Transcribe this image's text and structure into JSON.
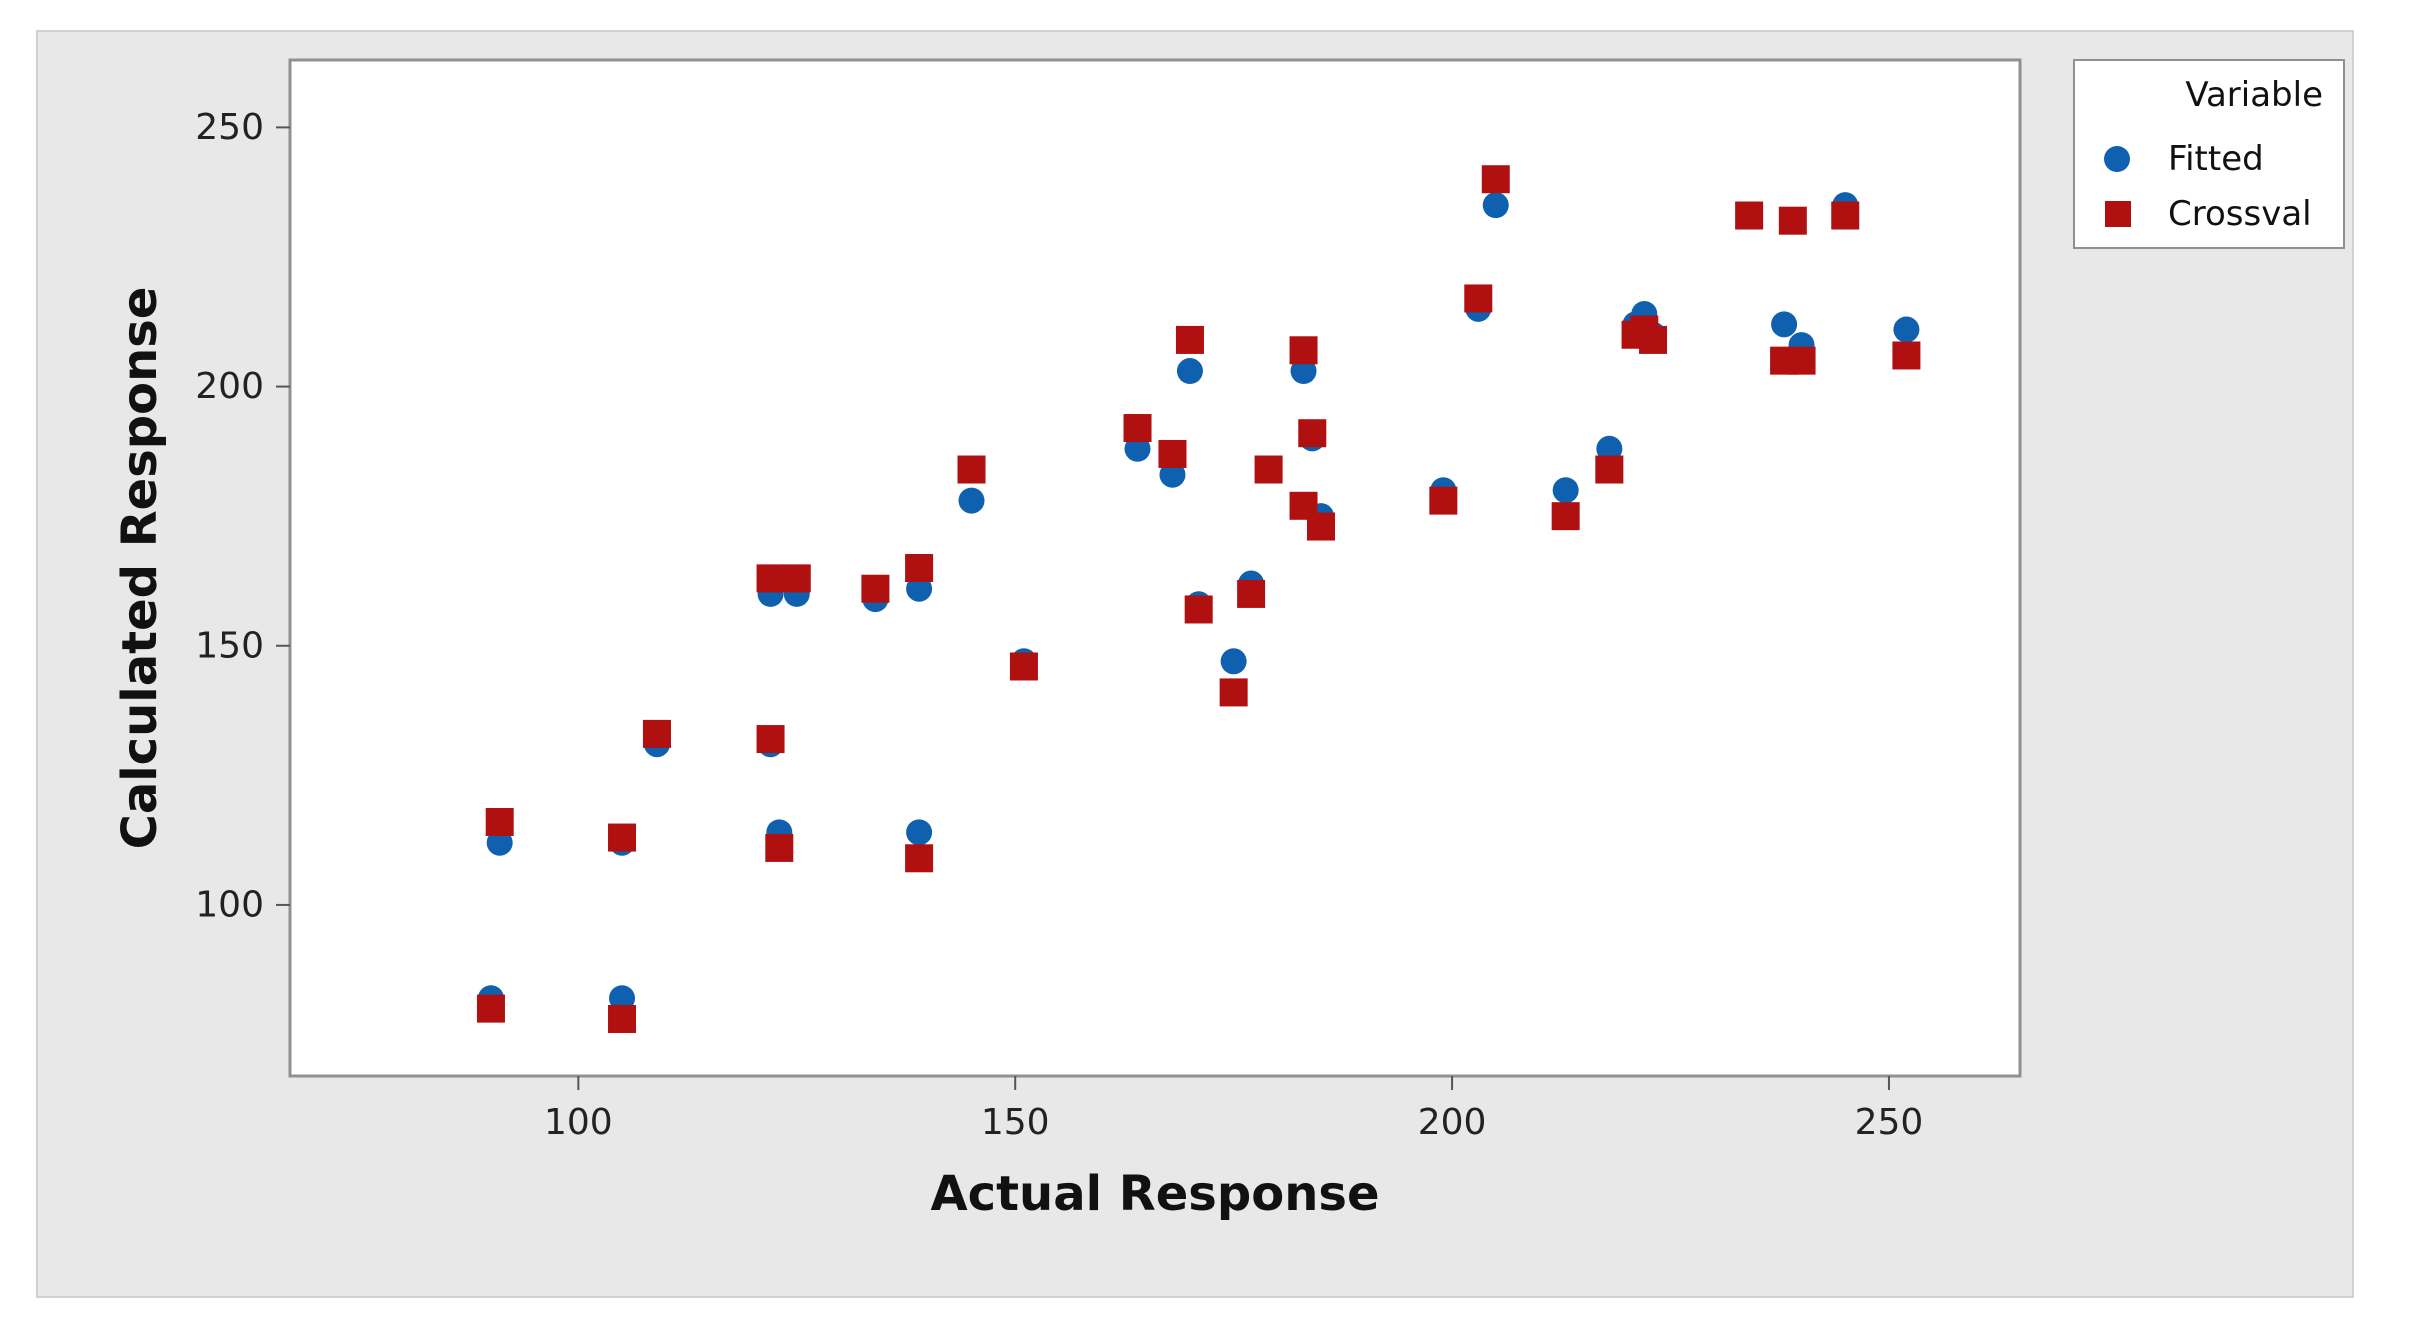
{
  "chart_data": {
    "type": "scatter",
    "title": "",
    "xlabel": "Actual Response",
    "ylabel": "Calculated Response",
    "xlim": [
      67,
      265
    ],
    "ylim": [
      67,
      263
    ],
    "xticks": [
      100,
      150,
      200,
      250
    ],
    "yticks": [
      100,
      150,
      200,
      250
    ],
    "grid": false,
    "legend": {
      "title": "Variable",
      "position": "top-right-outside",
      "entries": [
        "Fitted",
        "Crossval"
      ]
    },
    "series": [
      {
        "name": "Fitted",
        "marker": "circle",
        "color": "#1060b0",
        "points": [
          [
            90,
            82
          ],
          [
            91,
            112
          ],
          [
            105,
            82
          ],
          [
            105,
            112
          ],
          [
            109,
            131
          ],
          [
            122,
            160
          ],
          [
            122,
            131
          ],
          [
            123,
            114
          ],
          [
            125,
            160
          ],
          [
            134,
            159
          ],
          [
            139,
            161
          ],
          [
            139,
            114
          ],
          [
            145,
            178
          ],
          [
            151,
            147
          ],
          [
            164,
            188
          ],
          [
            168,
            183
          ],
          [
            170,
            203
          ],
          [
            171,
            158
          ],
          [
            175,
            147
          ],
          [
            177,
            162
          ],
          [
            179,
            184
          ],
          [
            183,
            203
          ],
          [
            183,
            177
          ],
          [
            184,
            190
          ],
          [
            185,
            175
          ],
          [
            199,
            180
          ],
          [
            203,
            215
          ],
          [
            205,
            235
          ],
          [
            213,
            180
          ],
          [
            218,
            188
          ],
          [
            221,
            212
          ],
          [
            222,
            214
          ],
          [
            223,
            210
          ],
          [
            238,
            212
          ],
          [
            240,
            208
          ],
          [
            245,
            235
          ],
          [
            252,
            211
          ]
        ]
      },
      {
        "name": "Crossval",
        "marker": "square",
        "color": "#b01010",
        "points": [
          [
            90,
            80
          ],
          [
            91,
            116
          ],
          [
            105,
            78
          ],
          [
            105,
            113
          ],
          [
            109,
            133
          ],
          [
            122,
            163
          ],
          [
            122,
            132
          ],
          [
            123,
            111
          ],
          [
            125,
            163
          ],
          [
            134,
            161
          ],
          [
            139,
            165
          ],
          [
            139,
            109
          ],
          [
            145,
            184
          ],
          [
            151,
            146
          ],
          [
            164,
            192
          ],
          [
            168,
            187
          ],
          [
            170,
            209
          ],
          [
            171,
            157
          ],
          [
            175,
            141
          ],
          [
            177,
            160
          ],
          [
            179,
            184
          ],
          [
            183,
            207
          ],
          [
            183,
            177
          ],
          [
            184,
            191
          ],
          [
            185,
            173
          ],
          [
            199,
            178
          ],
          [
            203,
            217
          ],
          [
            205,
            240
          ],
          [
            213,
            175
          ],
          [
            218,
            184
          ],
          [
            221,
            210
          ],
          [
            222,
            211
          ],
          [
            223,
            209
          ],
          [
            234,
            233
          ],
          [
            238,
            205
          ],
          [
            239,
            232
          ],
          [
            240,
            205
          ],
          [
            245,
            233
          ],
          [
            252,
            206
          ]
        ]
      }
    ]
  }
}
